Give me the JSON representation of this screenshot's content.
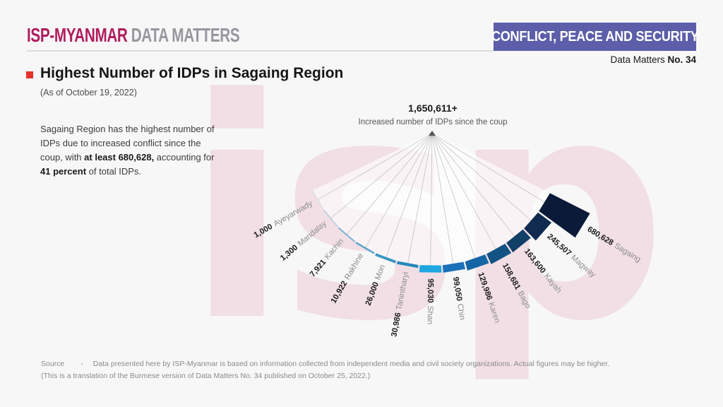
{
  "header": {
    "logo_primary": "ISP-MYANMAR",
    "logo_secondary": "DATA MATTERS",
    "banner": "CONFLICT, PEACE AND SECURITY",
    "issue_prefix": "Data Matters ",
    "issue_number": "No. 34"
  },
  "title_block": {
    "title": "Highest Number of IDPs in Sagaing Region",
    "as_of": "(As of October 19, 2022)",
    "paragraph_parts": [
      {
        "text": "Sagaing Region has the highest number of IDPs due to increased conflict since the coup, with ",
        "bold": false
      },
      {
        "text": "at least 680,628,",
        "bold": true
      },
      {
        "text": " accounting for ",
        "bold": false
      },
      {
        "text": "41 percent",
        "bold": true
      },
      {
        "text": " of total IDPs.",
        "bold": false
      }
    ]
  },
  "watermark": {
    "text": "isp",
    "color": "#f1dfe5"
  },
  "chart_data": {
    "type": "bar",
    "variant": "radial-fan",
    "total_label": "1,650,611+",
    "subtitle": "Increased number of IDPs since the coup",
    "categories": [
      "Ayeyarwady",
      "Mandalay",
      "Kachin",
      "Rakhine",
      "Mon",
      "Tanintharyi",
      "Shan",
      "Chin",
      "Karen",
      "Bago",
      "Kayah",
      "Magway",
      "Sagaing"
    ],
    "values": [
      1000,
      1300,
      7921,
      10922,
      26000,
      30986,
      95030,
      99050,
      129986,
      158681,
      163600,
      245507,
      680628
    ],
    "value_labels": [
      "1,000",
      "1,300",
      "7,921",
      "10,922",
      "26,000",
      "30,986",
      "95,030",
      "99,050",
      "129,986",
      "158,681",
      "163,600",
      "245,507",
      "680,628"
    ],
    "bar_colors": [
      "#d8dfe4",
      "#b5cedd",
      "#86b7d2",
      "#5ba5cb",
      "#3997c4",
      "#2388bc",
      "#1ea7e0",
      "#1b71b8",
      "#1565a4",
      "#135384",
      "#123f66",
      "#0f2b50",
      "#0b1a38"
    ],
    "number_color": "#1b1b1b",
    "name_color": "#8d8d8d",
    "line_color": "#ababab",
    "apex_marker_color": "#555555",
    "wedge_fill": "rgba(255,255,255,0.62)"
  },
  "source": {
    "label": "Source",
    "dash": "-",
    "text": "Data presented here by ISP-Myanmar is based on information collected from independent media and civil society organizations. Actual figures may be higher.",
    "note": "(This is a translation of the Burmese version of Data Matters No. 34 published on October 25, 2022.)"
  },
  "colors": {
    "background": "#f7f7f7",
    "accent_red": "#e5332a",
    "logo_magenta": "#b01d5f",
    "logo_gray": "#97979f",
    "banner_purple": "#5c5ea9"
  }
}
